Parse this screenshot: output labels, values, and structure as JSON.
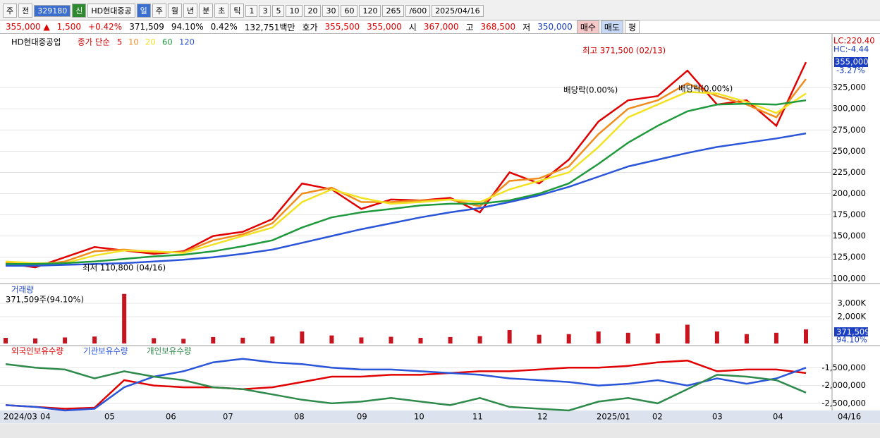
{
  "toolbar": {
    "items": [
      "주",
      "전",
      "329180",
      "신",
      "HD현대중공",
      "일",
      "주",
      "월",
      "년",
      "분",
      "초",
      "틱",
      "1",
      "3",
      "5",
      "10",
      "20",
      "30",
      "60",
      "120",
      "265",
      "/600",
      "2025/04/16"
    ]
  },
  "info": {
    "items": [
      "355,000 ▲",
      "1,500",
      "+0.42%",
      "371,509",
      "94.10%",
      "0.42%",
      "132,751백만",
      "호가",
      "355,500",
      "355,000",
      "시",
      "367,000",
      "고",
      "368,500",
      "저",
      "350,000",
      "매수",
      "매도",
      "평"
    ]
  },
  "x_labels": [
    "2024/03",
    "04",
    "05",
    "06",
    "07",
    "08",
    "09",
    "10",
    "11",
    "12",
    "2025/01",
    "02",
    "03",
    "04",
    "04/16"
  ],
  "chart_data": [
    {
      "type": "line",
      "title": "HD현대중공업",
      "legend_prefix": "종가 단순",
      "ylim": [
        94000,
        385000
      ],
      "yticks": [
        {
          "value": 100000,
          "label": "100,000"
        },
        {
          "value": 125000,
          "label": "125,000"
        },
        {
          "value": 150000,
          "label": "150,000"
        },
        {
          "value": 175000,
          "label": "175,000"
        },
        {
          "value": 200000,
          "label": "200,000"
        },
        {
          "value": 225000,
          "label": "225,000"
        },
        {
          "value": 250000,
          "label": "250,000"
        },
        {
          "value": 275000,
          "label": "275,000"
        },
        {
          "value": 300000,
          "label": "300,000"
        },
        {
          "value": 325000,
          "label": "325,000"
        }
      ],
      "series": [
        {
          "name": "5",
          "color": "#e00000",
          "values": [
            118000,
            113000,
            125000,
            137000,
            133000,
            129000,
            132000,
            150000,
            155000,
            170000,
            212000,
            205000,
            182000,
            193000,
            192000,
            195000,
            178000,
            225000,
            212000,
            240000,
            285000,
            310000,
            315000,
            345000,
            305000,
            310000,
            280000,
            355000
          ]
        },
        {
          "name": "10",
          "color": "#f08c1e",
          "values": [
            119000,
            116000,
            120000,
            132000,
            134000,
            131000,
            131000,
            145000,
            152000,
            165000,
            200000,
            207000,
            190000,
            190000,
            192000,
            193000,
            185000,
            215000,
            218000,
            232000,
            270000,
            300000,
            310000,
            330000,
            315000,
            305000,
            290000,
            335000
          ]
        },
        {
          "name": "20",
          "color": "#f2e224",
          "values": [
            120000,
            118000,
            118000,
            127000,
            133000,
            132000,
            130000,
            140000,
            150000,
            160000,
            190000,
            205000,
            195000,
            188000,
            190000,
            193000,
            190000,
            205000,
            215000,
            225000,
            255000,
            290000,
            305000,
            320000,
            318000,
            308000,
            295000,
            318000
          ]
        },
        {
          "name": "60",
          "color": "#1e9a3c",
          "values": [
            117000,
            117000,
            118000,
            120000,
            123000,
            126000,
            128000,
            132000,
            138000,
            145000,
            160000,
            172000,
            178000,
            182000,
            186000,
            188000,
            188000,
            192000,
            200000,
            212000,
            235000,
            260000,
            280000,
            297000,
            305000,
            306000,
            305000,
            310000
          ]
        },
        {
          "name": "120",
          "color": "#2a55d8",
          "values": [
            115000,
            115000,
            116000,
            117000,
            118000,
            120000,
            122000,
            125000,
            129000,
            134000,
            142000,
            150000,
            158000,
            165000,
            172000,
            178000,
            183000,
            190000,
            198000,
            208000,
            220000,
            232000,
            240000,
            248000,
            255000,
            260000,
            265000,
            271000
          ]
        }
      ],
      "annotations": [
        "최고 371,500 (02/13)",
        "최저 110,800 (04/16)",
        "배당락(0.00%)",
        "배당락(0.00%)"
      ],
      "side_labels": [
        "LC:220.40",
        "HC:-4.44",
        "355,000",
        "-3.27%"
      ]
    },
    {
      "type": "bar",
      "title": "거래량",
      "subtitle": "371,509주(94.10%)",
      "color": "#c8141e",
      "ylim": [
        0,
        4370000
      ],
      "yticks": [
        {
          "value": 2000000,
          "label": "2,000K"
        },
        {
          "value": 3000000,
          "label": "3,000K"
        }
      ],
      "values": [
        420000,
        380000,
        450000,
        520000,
        3700000,
        400000,
        350000,
        480000,
        430000,
        520000,
        900000,
        600000,
        450000,
        500000,
        420000,
        480000,
        550000,
        1000000,
        650000,
        700000,
        900000,
        800000,
        750000,
        1400000,
        900000,
        700000,
        800000,
        1050000
      ],
      "side_labels": [
        "371,509",
        "94.10%"
      ]
    },
    {
      "type": "line",
      "ylim": [
        -2700000,
        -920000
      ],
      "yticks": [
        {
          "value": -1500000,
          "label": "-1,500,000"
        },
        {
          "value": -2000000,
          "label": "-2,000,000"
        },
        {
          "value": -2500000,
          "label": "-2,500,000"
        }
      ],
      "series": [
        {
          "name": "외국인보유수량",
          "color": "#e00000",
          "values": [
            -2550000,
            -2600000,
            -2650000,
            -2620000,
            -1850000,
            -2000000,
            -2050000,
            -2050000,
            -2100000,
            -2050000,
            -1900000,
            -1750000,
            -1750000,
            -1700000,
            -1700000,
            -1650000,
            -1600000,
            -1600000,
            -1550000,
            -1500000,
            -1500000,
            -1450000,
            -1350000,
            -1300000,
            -1600000,
            -1550000,
            -1550000,
            -1650000
          ]
        },
        {
          "name": "기관보유수량",
          "color": "#2a55d8",
          "values": [
            -2550000,
            -2600000,
            -2700000,
            -2650000,
            -2050000,
            -1750000,
            -1600000,
            -1350000,
            -1250000,
            -1350000,
            -1400000,
            -1500000,
            -1550000,
            -1550000,
            -1600000,
            -1650000,
            -1700000,
            -1800000,
            -1850000,
            -1900000,
            -2000000,
            -1950000,
            -1850000,
            -2000000,
            -1800000,
            -1950000,
            -1800000,
            -1500000
          ]
        },
        {
          "name": "개인보유수량",
          "color": "#2e8a4a",
          "values": [
            -1400000,
            -1500000,
            -1550000,
            -1800000,
            -1600000,
            -1750000,
            -1850000,
            -2050000,
            -2100000,
            -2250000,
            -2400000,
            -2500000,
            -2450000,
            -2350000,
            -2450000,
            -2550000,
            -2350000,
            -2600000,
            -2650000,
            -2700000,
            -2450000,
            -2350000,
            -2500000,
            -2100000,
            -1700000,
            -1750000,
            -1850000,
            -2200000
          ]
        }
      ]
    }
  ]
}
